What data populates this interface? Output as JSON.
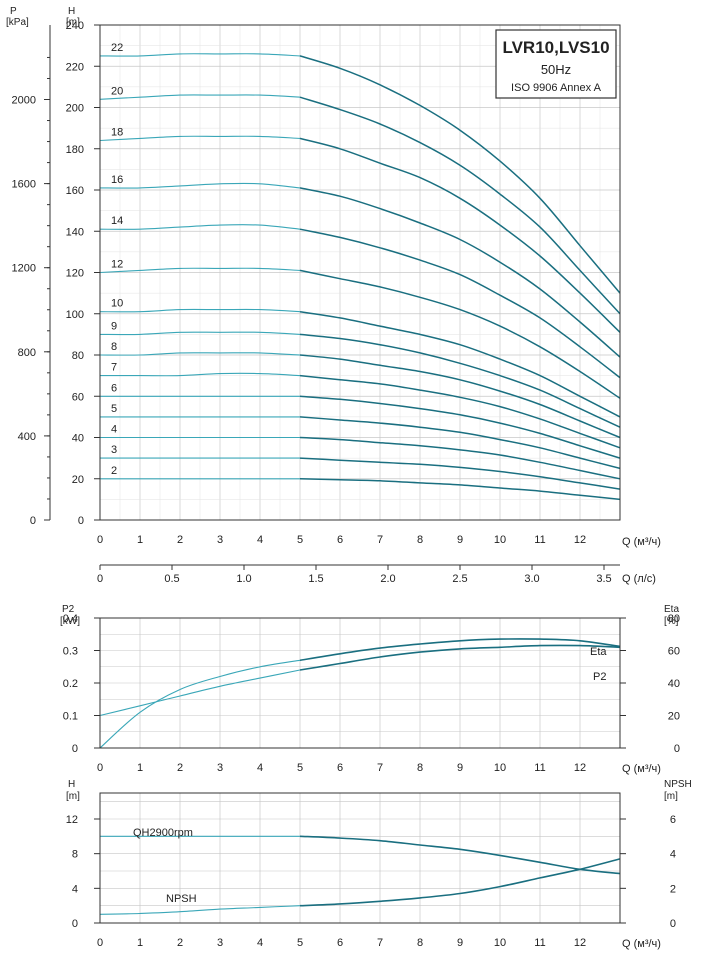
{
  "colors": {
    "curve_dark": "#1a6f80",
    "curve_light": "#3aa7b8",
    "grid": "#c8c8c8",
    "frame": "#333333",
    "text": "#222222"
  },
  "chart_data": [
    {
      "id": "qh",
      "type": "line",
      "title": "LVR10,LVS10",
      "subtitle": "50Hz",
      "note": "ISO 9906 Annex A",
      "xlabel": "Q (м³/ч)",
      "xlabel2": "Q (л/с)",
      "ylabel_left": "P\n[kPa]",
      "ylabel_right": "H\n[m]",
      "xlim": [
        0,
        13
      ],
      "ylim": [
        0,
        240
      ],
      "x_ticks": [
        0,
        1,
        2,
        3,
        4,
        5,
        6,
        7,
        8,
        9,
        10,
        11,
        12
      ],
      "y_ticks": [
        0,
        20,
        40,
        60,
        80,
        100,
        120,
        140,
        160,
        180,
        200,
        220,
        240
      ],
      "x2_ticks": [
        0,
        0.5,
        1.0,
        1.5,
        2.0,
        2.5,
        3.0,
        3.5
      ],
      "x2_tick_labels": [
        "0",
        "0.5",
        "1.0",
        "1.5",
        "2.0",
        "2.5",
        "3.0",
        "3.5"
      ],
      "p_ticks": [
        0,
        400,
        800,
        1200,
        1600,
        2000
      ],
      "grid": true,
      "x": [
        0,
        1,
        2,
        3,
        4,
        5,
        6,
        7,
        8,
        9,
        10,
        11,
        12,
        13
      ],
      "series": [
        {
          "name": "2",
          "values": [
            20,
            20,
            20,
            20,
            20,
            20,
            19.5,
            19,
            18,
            17,
            15.5,
            14,
            12,
            10
          ]
        },
        {
          "name": "3",
          "values": [
            30,
            30,
            30,
            30,
            30,
            30,
            29,
            28,
            27,
            25.5,
            23.5,
            21,
            18,
            15
          ]
        },
        {
          "name": "4",
          "values": [
            40,
            40,
            40,
            40,
            40,
            40,
            39,
            37.5,
            36,
            34,
            31.5,
            28,
            24,
            20
          ]
        },
        {
          "name": "5",
          "values": [
            50,
            50,
            50,
            50,
            50,
            50,
            48.5,
            47,
            45,
            42.5,
            39,
            35,
            30,
            25
          ]
        },
        {
          "name": "6",
          "values": [
            60,
            60,
            60,
            60,
            60,
            60,
            58.5,
            56.5,
            54,
            51,
            47,
            42,
            36,
            30
          ]
        },
        {
          "name": "7",
          "values": [
            70,
            70,
            70,
            71,
            71,
            70,
            68,
            66,
            63,
            59.5,
            55,
            49,
            42,
            35
          ]
        },
        {
          "name": "8",
          "values": [
            80,
            80,
            81,
            81,
            81,
            80,
            78,
            75,
            72,
            68,
            62.5,
            56,
            48,
            40
          ]
        },
        {
          "name": "9",
          "values": [
            90,
            90,
            91,
            91,
            91,
            90,
            88,
            85,
            81,
            76,
            70,
            63,
            54,
            45
          ]
        },
        {
          "name": "10",
          "values": [
            101,
            101,
            102,
            102,
            102,
            101,
            98,
            94,
            90,
            85,
            78,
            70,
            60,
            50
          ]
        },
        {
          "name": "12",
          "values": [
            120,
            121,
            122,
            122,
            122,
            121,
            117,
            113,
            108,
            102,
            94,
            84,
            72,
            59
          ]
        },
        {
          "name": "14",
          "values": [
            141,
            141,
            142,
            143,
            143,
            141,
            137,
            132,
            126,
            119,
            109,
            98,
            84,
            69
          ]
        },
        {
          "name": "16",
          "values": [
            161,
            161,
            162,
            163,
            163,
            161,
            157,
            151,
            144,
            136,
            125,
            112,
            96,
            79
          ]
        },
        {
          "name": "18",
          "values": [
            184,
            185,
            186,
            186,
            186,
            185,
            180,
            173,
            166,
            156,
            143,
            128,
            110,
            91
          ]
        },
        {
          "name": "20",
          "values": [
            204,
            205,
            206,
            206,
            206,
            205,
            199,
            192,
            183,
            172,
            158,
            142,
            121,
            100
          ]
        },
        {
          "name": "22",
          "values": [
            225,
            225,
            226,
            226,
            226,
            225,
            219,
            211,
            201,
            189,
            174,
            156,
            133,
            110
          ]
        }
      ]
    },
    {
      "id": "p2eta",
      "type": "line",
      "ylabel_left": "P2\n[kW]",
      "ylabel_right": "Eta\n[%]",
      "xlabel": "Q (м³/ч)",
      "xlim": [
        0,
        13
      ],
      "ylim": [
        0,
        0.4
      ],
      "ylim_right": [
        0,
        80
      ],
      "x_ticks": [
        0,
        1,
        2,
        3,
        4,
        5,
        6,
        7,
        8,
        9,
        10,
        11,
        12
      ],
      "y_ticks": [
        0,
        0.1,
        0.2,
        0.3,
        0.4
      ],
      "y_tick_labels": [
        "0",
        "0.1",
        "0.2",
        "0.3",
        "0.4"
      ],
      "y_right_ticks": [
        0,
        20,
        40,
        60,
        80
      ],
      "grid": true,
      "x": [
        0,
        1,
        2,
        3,
        4,
        5,
        6,
        7,
        8,
        9,
        10,
        11,
        12,
        13
      ],
      "series": [
        {
          "name": "Eta",
          "axis": "right",
          "values": [
            0,
            22,
            36,
            44,
            50,
            54,
            58,
            61.5,
            64,
            66,
            67,
            67,
            66,
            62.5
          ]
        },
        {
          "name": "P2",
          "axis": "left",
          "values": [
            0.1,
            0.13,
            0.16,
            0.19,
            0.215,
            0.24,
            0.26,
            0.28,
            0.295,
            0.305,
            0.31,
            0.315,
            0.315,
            0.31
          ]
        }
      ]
    },
    {
      "id": "npsh",
      "type": "line",
      "ylabel_left": "H\n[m]",
      "ylabel_right": "NPSH\n[m]",
      "xlabel": "Q (м³/ч)",
      "xlim": [
        0,
        13
      ],
      "ylim": [
        0,
        15
      ],
      "ylim_right": [
        0,
        7.5
      ],
      "x_ticks": [
        0,
        1,
        2,
        3,
        4,
        5,
        6,
        7,
        8,
        9,
        10,
        11,
        12
      ],
      "y_ticks": [
        0,
        4,
        8,
        12
      ],
      "y_right_ticks": [
        0,
        2,
        4,
        6
      ],
      "grid": true,
      "x": [
        0,
        1,
        2,
        3,
        4,
        5,
        6,
        7,
        8,
        9,
        10,
        11,
        12,
        13
      ],
      "series": [
        {
          "name": "QH2900rpm",
          "axis": "left",
          "values": [
            10,
            10,
            10,
            10,
            10,
            10,
            9.8,
            9.5,
            9,
            8.5,
            7.8,
            7,
            6.2,
            5.7
          ]
        },
        {
          "name": "NPSH",
          "axis": "right",
          "values": [
            0.5,
            0.55,
            0.65,
            0.8,
            0.9,
            1.0,
            1.1,
            1.25,
            1.45,
            1.7,
            2.1,
            2.6,
            3.1,
            3.7
          ]
        }
      ]
    }
  ]
}
